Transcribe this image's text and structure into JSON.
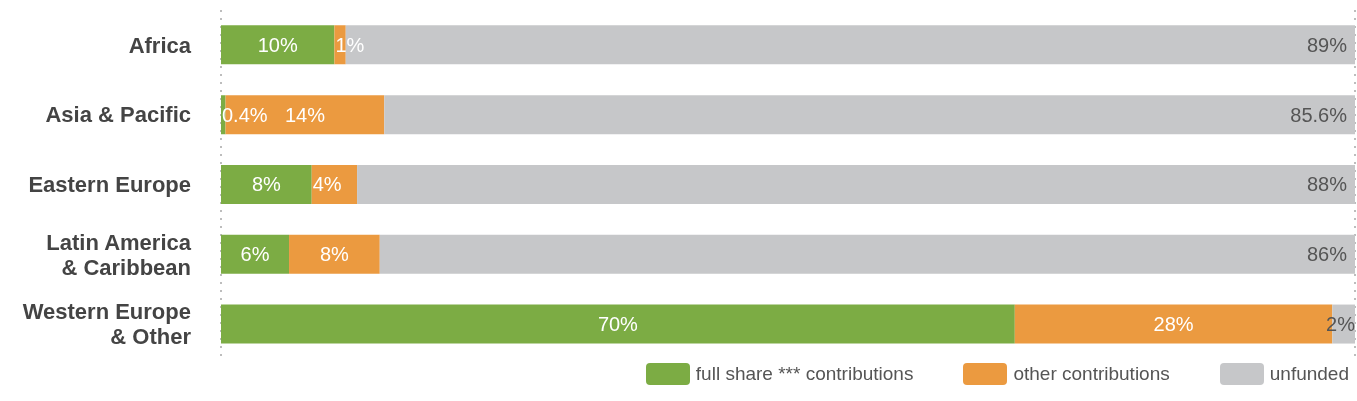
{
  "chart_data": {
    "type": "bar",
    "orientation": "horizontal",
    "stacked": true,
    "categories": [
      "Africa",
      "Asia & Pacific",
      "Eastern Europe",
      "Latin America & Caribbean",
      "Western Europe & Other"
    ],
    "series": [
      {
        "name": "full share *** contributions",
        "color": "#7cac44",
        "values": [
          10,
          0.4,
          8,
          6,
          70
        ],
        "value_labels": [
          "10%",
          "0.4%",
          "8%",
          "6%",
          "70%"
        ]
      },
      {
        "name": "other contributions",
        "color": "#eb9a40",
        "values": [
          1,
          14,
          4,
          8,
          28
        ],
        "value_labels": [
          "1%",
          "14%",
          "4%",
          "8%",
          "28%"
        ]
      },
      {
        "name": "unfunded",
        "color": "#c6c7c9",
        "values": [
          89,
          85.6,
          88,
          86,
          2
        ],
        "value_labels": [
          "89%",
          "85.6%",
          "88%",
          "86%",
          "2%"
        ]
      }
    ],
    "tick_labels": "y",
    "grid": "x",
    "legend": "bottom right"
  }
}
